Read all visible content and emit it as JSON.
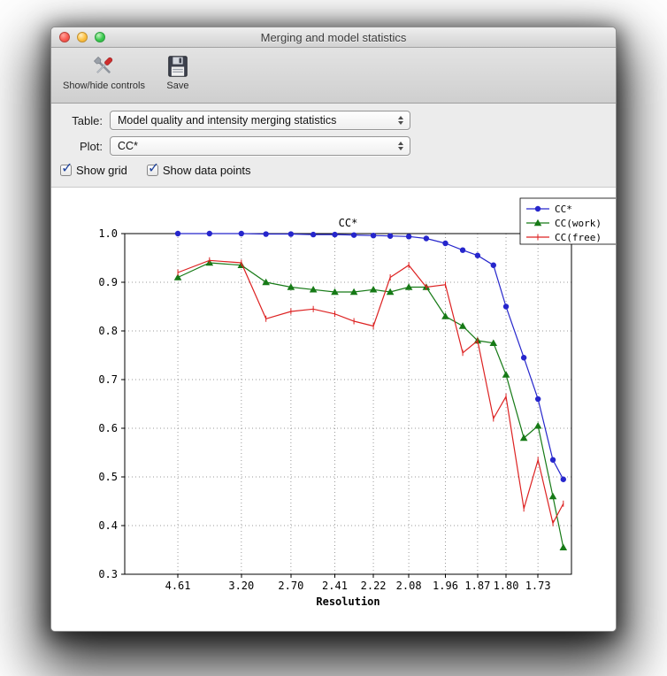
{
  "window": {
    "title": "Merging and model statistics"
  },
  "toolbar": {
    "buttons": [
      {
        "label": "Show/hide controls",
        "icon": "tools-icon"
      },
      {
        "label": "Save",
        "icon": "save-icon"
      }
    ]
  },
  "controls": {
    "table_label": "Table:",
    "table_value": "Model quality and intensity merging statistics",
    "plot_label": "Plot:",
    "plot_value": "CC*",
    "checkboxes": [
      {
        "label": "Show grid",
        "checked": true
      },
      {
        "label": "Show data points",
        "checked": true
      }
    ]
  },
  "chart_data": {
    "type": "line",
    "title": "CC*",
    "xlabel": "Resolution",
    "ylabel": "",
    "ylim": [
      0.3,
      1.0
    ],
    "yticks": [
      1.0,
      0.9,
      0.8,
      0.7,
      0.6,
      0.5,
      0.4,
      0.3
    ],
    "grid": true,
    "legend_position": "upper right",
    "x_axis": {
      "scale": "1/d^2",
      "s_min": 0.0047,
      "s_max": 0.3608
    },
    "xtick_labels": [
      "4.61",
      "3.20",
      "2.70",
      "2.41",
      "2.22",
      "2.08",
      "1.96",
      "1.87",
      "1.80",
      "1.73"
    ],
    "xtick_bins": [
      0,
      2,
      4,
      6,
      8,
      10,
      12,
      14,
      16,
      18
    ],
    "resolution_bins": [
      4.61,
      3.72,
      3.2,
      2.92,
      2.7,
      2.54,
      2.41,
      2.31,
      2.22,
      2.15,
      2.08,
      2.02,
      1.96,
      1.91,
      1.87,
      1.83,
      1.8,
      1.76,
      1.73,
      1.7,
      1.68
    ],
    "series": [
      {
        "name": "CC*",
        "color": "#2626cc",
        "marker": "circle",
        "values": [
          1.0,
          1.0,
          1.0,
          0.999,
          0.999,
          0.998,
          0.998,
          0.997,
          0.996,
          0.995,
          0.994,
          0.99,
          0.98,
          0.966,
          0.955,
          0.935,
          0.85,
          0.745,
          0.66,
          0.535,
          0.495
        ]
      },
      {
        "name": "CC(work)",
        "color": "#167a16",
        "marker": "triangle",
        "values": [
          0.91,
          0.94,
          0.935,
          0.9,
          0.89,
          0.885,
          0.88,
          0.88,
          0.885,
          0.88,
          0.89,
          0.89,
          0.83,
          0.81,
          0.78,
          0.775,
          0.71,
          0.58,
          0.605,
          0.46,
          0.355
        ]
      },
      {
        "name": "CC(free)",
        "color": "#dd2222",
        "marker": "tick",
        "values": [
          0.92,
          0.945,
          0.94,
          0.825,
          0.84,
          0.845,
          0.835,
          0.82,
          0.81,
          0.91,
          0.935,
          0.89,
          0.895,
          0.755,
          0.78,
          0.62,
          0.665,
          0.435,
          0.535,
          0.405,
          0.445
        ]
      }
    ]
  }
}
